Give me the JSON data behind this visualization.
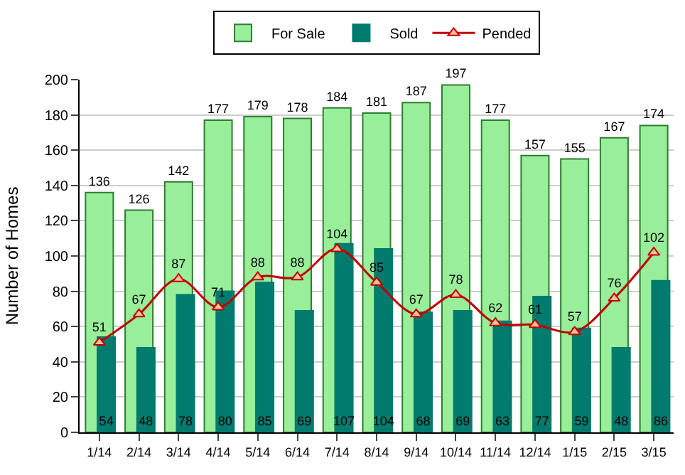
{
  "chart_data": {
    "type": "bar",
    "ylabel": "Number of Homes",
    "categories": [
      "1/14",
      "2/14",
      "3/14",
      "4/14",
      "5/14",
      "6/14",
      "7/14",
      "8/14",
      "9/14",
      "10/14",
      "11/14",
      "12/14",
      "1/15",
      "2/15",
      "3/15"
    ],
    "series": [
      {
        "name": "For Sale",
        "color": "#99ee99",
        "values": [
          136,
          126,
          142,
          177,
          179,
          178,
          184,
          181,
          187,
          197,
          177,
          157,
          155,
          167,
          174
        ]
      },
      {
        "name": "Sold",
        "color": "#007b6e",
        "values": [
          54,
          48,
          78,
          80,
          85,
          69,
          107,
          104,
          68,
          69,
          63,
          77,
          59,
          48,
          86
        ]
      },
      {
        "name": "Pended",
        "type": "line",
        "color": "#c00000",
        "marker": "triangle",
        "line_style": "solid",
        "values": [
          51,
          67,
          87,
          71,
          88,
          88,
          104,
          85,
          67,
          78,
          62,
          61,
          57,
          76,
          102
        ]
      }
    ],
    "ylim": [
      0,
      200
    ],
    "yticks": [
      0,
      20,
      40,
      60,
      80,
      100,
      120,
      140,
      160,
      180,
      200
    ],
    "grid": "y",
    "legend": "top",
    "data_labels": true
  }
}
